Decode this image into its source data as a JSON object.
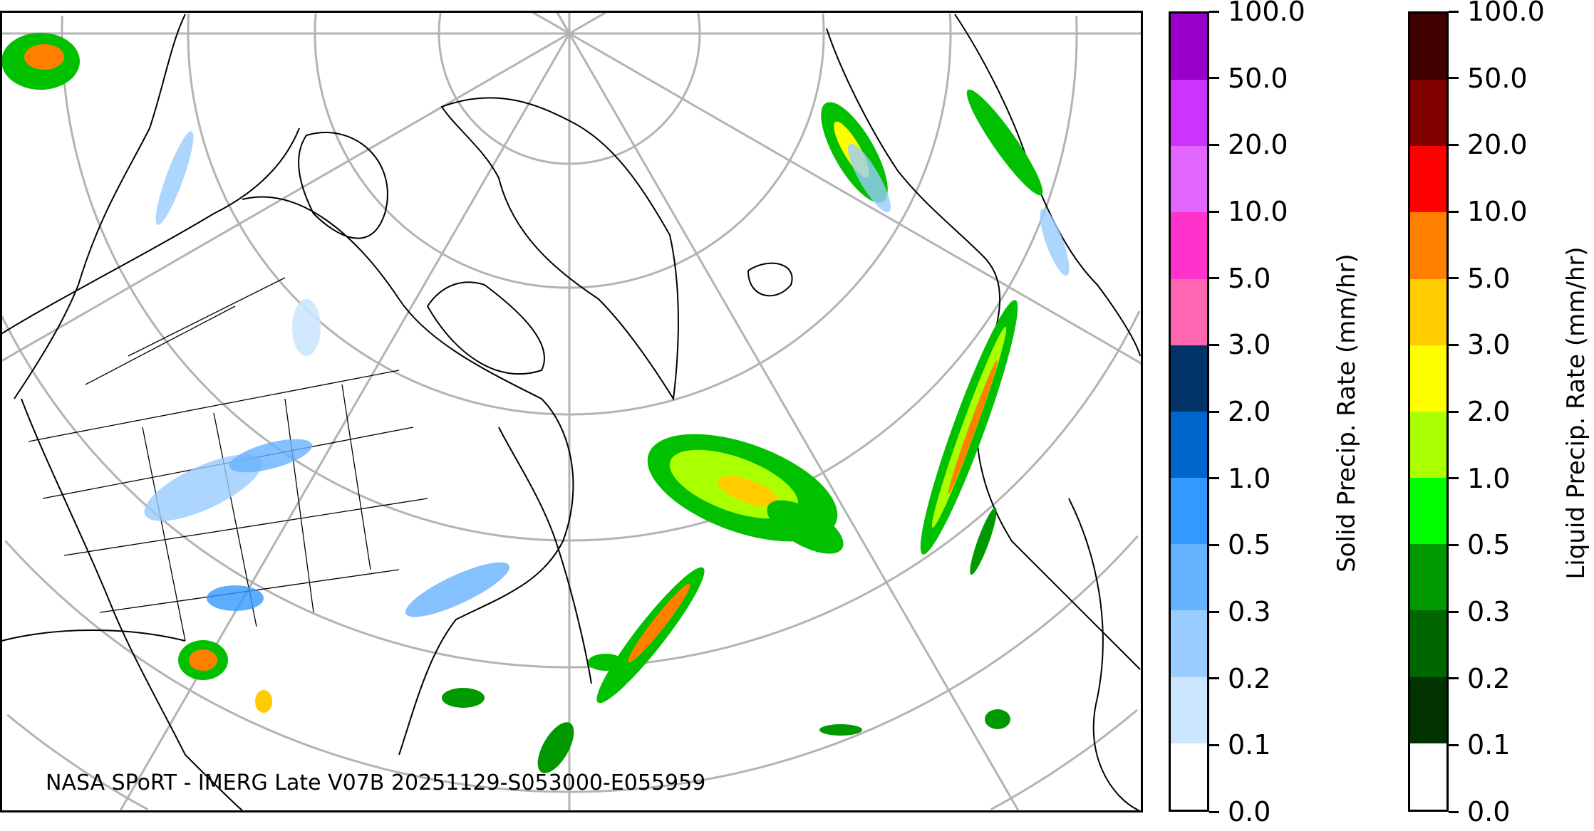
{
  "map": {
    "credit": "NASA SPoRT - IMERG Late V07B 20251129-S053000-E055959",
    "projection": "polar stereographic (North America / North Atlantic)",
    "graticule_color": "#b3b3b3",
    "coastline_color": "#000000"
  },
  "colorbars": [
    {
      "label": "Solid Precip. Rate (mm/hr)",
      "ticks": [
        "0.0",
        "0.1",
        "0.2",
        "0.3",
        "0.5",
        "1.0",
        "2.0",
        "3.0",
        "5.0",
        "10.0",
        "20.0",
        "50.0",
        "100.0"
      ],
      "colors": [
        "#ffffff",
        "#cce5ff",
        "#99ccff",
        "#66b2ff",
        "#3399ff",
        "#0066cc",
        "#003366",
        "#ff66b2",
        "#ff33cc",
        "#e066ff",
        "#cc33ff",
        "#9900cc"
      ]
    },
    {
      "label": "Liquid Precip. Rate (mm/hr)",
      "ticks": [
        "0.0",
        "0.1",
        "0.2",
        "0.3",
        "0.5",
        "1.0",
        "2.0",
        "3.0",
        "5.0",
        "10.0",
        "20.0",
        "50.0",
        "100.0"
      ],
      "colors": [
        "#ffffff",
        "#003300",
        "#006600",
        "#009900",
        "#00ff00",
        "#aaff00",
        "#ffff00",
        "#ffcc00",
        "#ff8000",
        "#ff0000",
        "#800000",
        "#400000"
      ]
    }
  ]
}
